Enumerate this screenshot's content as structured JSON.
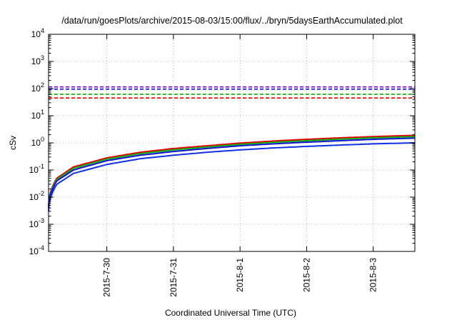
{
  "chart_data": {
    "type": "line",
    "title": "/data/run/goesPlots/archive/2015-08-03/15:00/flux/../bryn/5daysEarthAccumulated.plot",
    "xlabel": "Coordinated Universal Time (UTC)",
    "ylabel": "cSv",
    "y_scale": "log",
    "ylim": [
      0.0001,
      10000
    ],
    "xlim": [
      "2015-07-29T03:00",
      "2015-08-03T15:00"
    ],
    "x_ticks": [
      "2015-7-30",
      "2015-7-31",
      "2015-8-1",
      "2015-8-2",
      "2015-8-3"
    ],
    "y_ticks": [
      {
        "mantissa": "10",
        "exponent": "-4"
      },
      {
        "mantissa": "10",
        "exponent": "-3"
      },
      {
        "mantissa": "10",
        "exponent": "-2"
      },
      {
        "mantissa": "10",
        "exponent": "-1"
      },
      {
        "mantissa": "10",
        "exponent": "0"
      },
      {
        "mantissa": "10",
        "exponent": "1"
      },
      {
        "mantissa": "10",
        "exponent": "2"
      },
      {
        "mantissa": "10",
        "exponent": "3"
      },
      {
        "mantissa": "10",
        "exponent": "4"
      }
    ],
    "grid": true,
    "threshold_lines": [
      {
        "color": "#7a00c8",
        "value": 115
      },
      {
        "color": "#1010d0",
        "value": 95
      },
      {
        "color": "#10b010",
        "value": 62
      },
      {
        "color": "#e00000",
        "value": 45
      }
    ],
    "series": [
      {
        "color": "#e00000",
        "x": [
          "2015-07-29T03:00",
          "2015-07-29T06:00",
          "2015-07-29T12:00",
          "2015-07-30T00:00",
          "2015-07-30T12:00",
          "2015-07-31T00:00",
          "2015-07-31T12:00",
          "2015-08-01T00:00",
          "2015-08-01T12:00",
          "2015-08-02T00:00",
          "2015-08-02T12:00",
          "2015-08-03T00:00",
          "2015-08-03T15:00"
        ],
        "values": [
          0.005,
          0.05,
          0.13,
          0.28,
          0.45,
          0.62,
          0.78,
          0.98,
          1.17,
          1.35,
          1.53,
          1.7,
          1.9
        ]
      },
      {
        "color": "#10b010",
        "x": [
          "2015-07-29T03:00",
          "2015-07-29T06:00",
          "2015-07-29T12:00",
          "2015-07-30T00:00",
          "2015-07-30T12:00",
          "2015-07-31T00:00",
          "2015-07-31T12:00",
          "2015-08-01T00:00",
          "2015-08-01T12:00",
          "2015-08-02T00:00",
          "2015-08-02T12:00",
          "2015-08-03T00:00",
          "2015-08-03T15:00"
        ],
        "values": [
          0.0045,
          0.045,
          0.115,
          0.25,
          0.4,
          0.55,
          0.7,
          0.88,
          1.05,
          1.2,
          1.37,
          1.53,
          1.7
        ]
      },
      {
        "color": "#1010d0",
        "x": [
          "2015-07-29T03:00",
          "2015-07-29T06:00",
          "2015-07-29T12:00",
          "2015-07-30T00:00",
          "2015-07-30T12:00",
          "2015-07-31T00:00",
          "2015-07-31T12:00",
          "2015-08-01T00:00",
          "2015-08-01T12:00",
          "2015-08-02T00:00",
          "2015-08-02T12:00",
          "2015-08-03T00:00",
          "2015-08-03T15:00"
        ],
        "values": [
          0.004,
          0.04,
          0.1,
          0.22,
          0.35,
          0.48,
          0.62,
          0.78,
          0.92,
          1.06,
          1.2,
          1.35,
          1.5
        ]
      },
      {
        "color": "#1030e8",
        "x": [
          "2015-07-29T03:00",
          "2015-07-29T06:00",
          "2015-07-29T12:00",
          "2015-07-30T00:00",
          "2015-07-30T12:00",
          "2015-07-31T00:00",
          "2015-07-31T12:00",
          "2015-08-01T00:00",
          "2015-08-01T12:00",
          "2015-08-02T00:00",
          "2015-08-02T12:00",
          "2015-08-03T00:00",
          "2015-08-03T15:00"
        ],
        "values": [
          0.003,
          0.03,
          0.075,
          0.16,
          0.26,
          0.35,
          0.45,
          0.55,
          0.65,
          0.74,
          0.83,
          0.92,
          1.0
        ]
      }
    ]
  }
}
